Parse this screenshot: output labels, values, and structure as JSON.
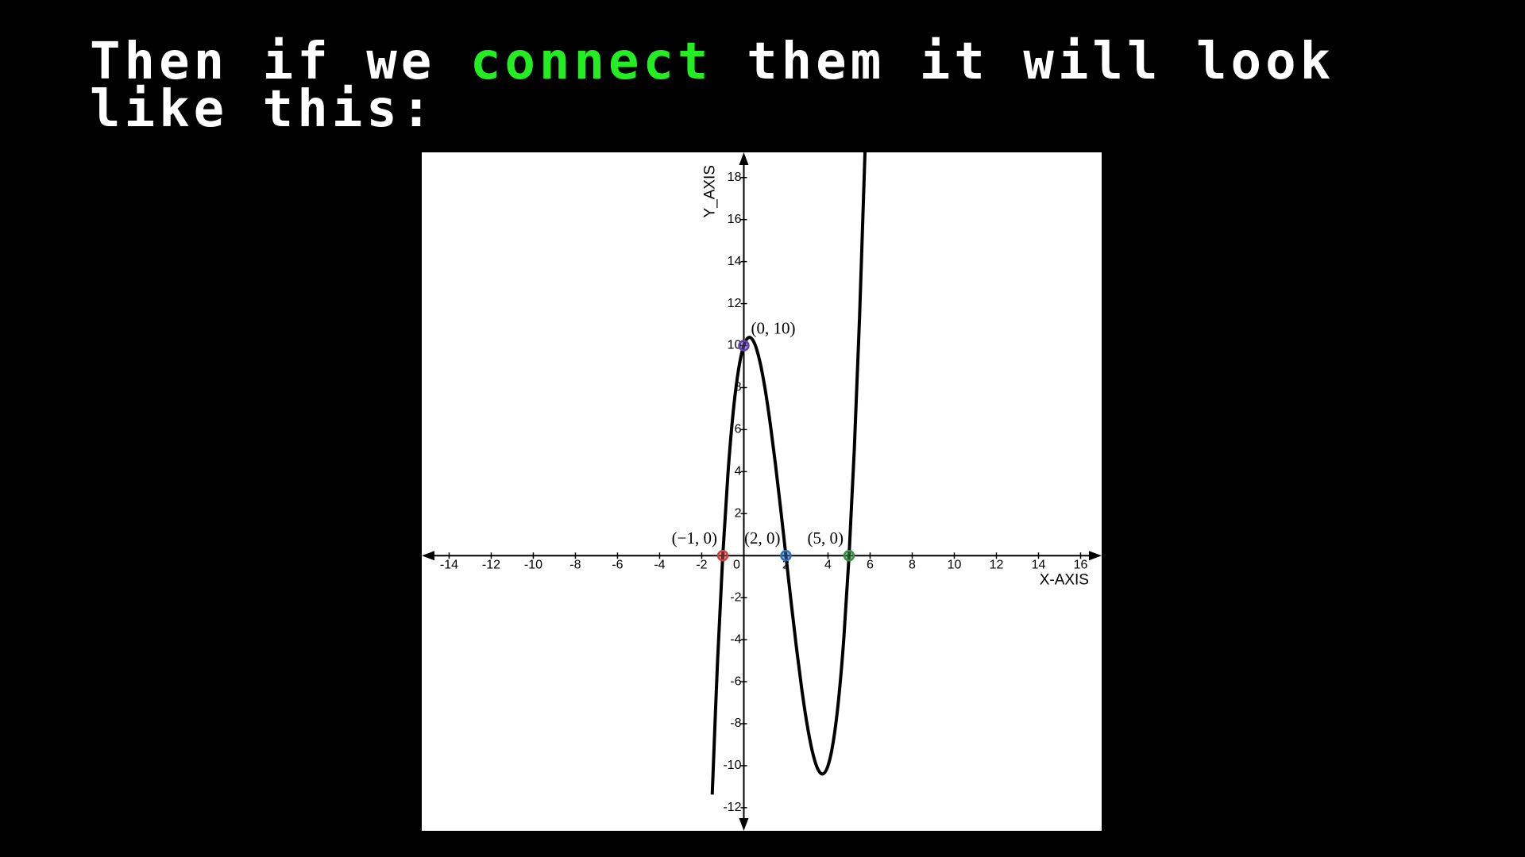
{
  "heading": {
    "before": "Then if we",
    "highlight": "connect",
    "after": "them it will look like this:"
  },
  "chart_data": {
    "type": "line",
    "x_label": "X-AXIS",
    "y_label": "Y_AXIS",
    "xlim": [
      -15.3,
      17
    ],
    "ylim": [
      -13.1,
      19.2
    ],
    "xticks": [
      -14,
      -12,
      -10,
      -8,
      -6,
      -4,
      -2,
      0,
      2,
      4,
      6,
      8,
      10,
      12,
      14,
      16
    ],
    "yticks": [
      -12,
      -10,
      -8,
      -6,
      -4,
      -2,
      2,
      4,
      6,
      8,
      10,
      12,
      14,
      16,
      18
    ],
    "color": "#000000",
    "x": [
      -1.5,
      -1.25,
      -1,
      -0.75,
      -0.5,
      -0.25,
      0,
      0.25,
      0.5,
      0.75,
      1,
      1.25,
      1.5,
      1.75,
      2,
      2.25,
      2.5,
      2.75,
      3,
      3.25,
      3.5,
      3.75,
      4,
      4.25,
      4.5,
      4.75,
      5,
      5.25,
      5.5,
      5.75,
      6
    ],
    "values": [
      -11.375,
      -5.078,
      0,
      3.953,
      6.875,
      8.859,
      10,
      10.391,
      10.125,
      9.297,
      8,
      6.328,
      4.375,
      2.234,
      0,
      -2.234,
      -4.375,
      -6.328,
      -8,
      -9.297,
      -10.125,
      -10.391,
      -10,
      -8.859,
      -6.875,
      -3.953,
      0,
      5.078,
      11.375,
      18.984,
      28
    ],
    "points": [
      {
        "label": "(−1, 0)",
        "x": -1,
        "y": 0,
        "color": "#c74440"
      },
      {
        "label": "(2, 0)",
        "x": 2,
        "y": 0,
        "color": "#2d70b3"
      },
      {
        "label": "(5, 0)",
        "x": 5,
        "y": 0,
        "color": "#388c46"
      },
      {
        "label": "(0, 10)",
        "x": 0,
        "y": 10,
        "color": "#6042a6"
      }
    ]
  }
}
